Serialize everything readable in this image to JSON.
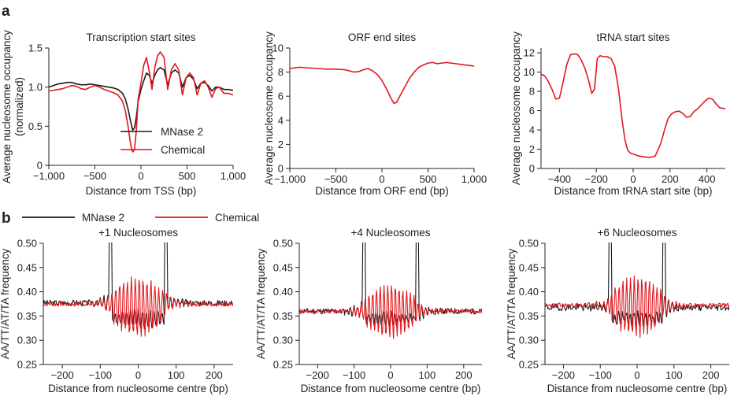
{
  "panel_labels": [
    "a",
    "b"
  ],
  "colors": {
    "black": "#1a1a1a",
    "red": "#e3171e"
  },
  "top_legend": {
    "entries": [
      "MNase 2",
      "Chemical"
    ]
  },
  "chart_data": [
    {
      "id": "tss",
      "type": "line",
      "title": "Transcription start sites",
      "xlabel": "Distance from TSS (bp)",
      "ylabel": [
        "Average nucleosome occupancy",
        "(normalized)"
      ],
      "xlim": [
        -1000,
        1000
      ],
      "ylim": [
        0,
        1.5
      ],
      "xticks": [
        -1000,
        -500,
        0,
        500,
        1000
      ],
      "xtick_labels": [
        "−1,000",
        "−500",
        "0",
        "500",
        "1,000"
      ],
      "yticks": [
        0,
        0.5,
        1.0,
        1.5
      ],
      "ytick_labels": [
        "0",
        "0.5",
        "1.0",
        "1.5"
      ],
      "legend": [
        "MNase 2",
        "Chemical"
      ],
      "series": [
        {
          "name": "MNase 2",
          "color": "#1a1a1a",
          "x": [
            -1000,
            -950,
            -900,
            -850,
            -800,
            -750,
            -700,
            -650,
            -600,
            -550,
            -500,
            -450,
            -400,
            -350,
            -300,
            -250,
            -200,
            -170,
            -140,
            -110,
            -90,
            -70,
            -50,
            -30,
            0,
            30,
            60,
            90,
            120,
            150,
            180,
            210,
            250,
            290,
            330,
            370,
            410,
            450,
            490,
            530,
            570,
            610,
            650,
            690,
            730,
            770,
            810,
            850,
            900,
            950,
            1000
          ],
          "y": [
            1.0,
            1.02,
            1.04,
            1.05,
            1.06,
            1.06,
            1.04,
            1.03,
            1.03,
            1.04,
            1.03,
            1.02,
            1.01,
            1.0,
            0.99,
            0.97,
            0.92,
            0.85,
            0.72,
            0.55,
            0.45,
            0.48,
            0.62,
            0.82,
            0.97,
            1.08,
            1.18,
            1.15,
            1.05,
            1.15,
            1.22,
            1.25,
            1.22,
            1.03,
            1.18,
            1.22,
            1.18,
            1.0,
            1.12,
            1.15,
            1.1,
            0.98,
            1.05,
            1.06,
            1.02,
            0.95,
            1.0,
            1.0,
            0.97,
            0.97,
            0.96
          ]
        },
        {
          "name": "Chemical",
          "color": "#e3171e",
          "x": [
            -1000,
            -950,
            -900,
            -850,
            -800,
            -750,
            -700,
            -650,
            -600,
            -550,
            -500,
            -450,
            -400,
            -350,
            -300,
            -250,
            -200,
            -170,
            -140,
            -110,
            -90,
            -70,
            -50,
            -30,
            0,
            30,
            60,
            90,
            120,
            150,
            180,
            210,
            250,
            290,
            330,
            370,
            410,
            450,
            490,
            530,
            570,
            610,
            650,
            690,
            730,
            770,
            810,
            850,
            900,
            950,
            1000
          ],
          "y": [
            0.95,
            0.96,
            0.97,
            0.98,
            1.0,
            1.02,
            1.01,
            0.98,
            0.97,
            1.0,
            1.02,
            1.0,
            0.97,
            0.95,
            0.93,
            0.9,
            0.82,
            0.7,
            0.5,
            0.25,
            0.17,
            0.2,
            0.45,
            0.85,
            1.05,
            1.28,
            1.38,
            1.2,
            0.97,
            1.25,
            1.4,
            1.45,
            1.38,
            0.97,
            1.22,
            1.3,
            1.22,
            0.9,
            1.12,
            1.18,
            1.12,
            0.9,
            1.05,
            1.08,
            1.0,
            0.87,
            0.98,
            1.0,
            0.92,
            0.92,
            0.9
          ]
        }
      ]
    },
    {
      "id": "orf",
      "type": "line",
      "title": "ORF end sites",
      "xlabel": "Distance from ORF end (bp)",
      "ylabel": [
        "Average nucleosome occupancy"
      ],
      "xlim": [
        -1000,
        1000
      ],
      "ylim": [
        0,
        10
      ],
      "xticks": [
        -1000,
        -500,
        0,
        500,
        1000
      ],
      "xtick_labels": [
        "−1,000",
        "−500",
        "0",
        "500",
        "1,000"
      ],
      "yticks": [
        0,
        2,
        4,
        6,
        8,
        10
      ],
      "ytick_labels": [
        "0",
        "2",
        "4",
        "6",
        "8",
        "10"
      ],
      "series": [
        {
          "name": "Chemical",
          "color": "#e3171e",
          "x": [
            -1000,
            -900,
            -800,
            -700,
            -600,
            -500,
            -400,
            -300,
            -250,
            -200,
            -150,
            -100,
            -50,
            0,
            50,
            100,
            130,
            160,
            200,
            250,
            300,
            350,
            400,
            450,
            500,
            550,
            600,
            700,
            800,
            900,
            1000
          ],
          "y": [
            8.3,
            8.4,
            8.35,
            8.3,
            8.25,
            8.25,
            8.2,
            8.0,
            8.05,
            8.2,
            8.3,
            8.1,
            7.8,
            7.3,
            6.6,
            5.8,
            5.4,
            5.5,
            6.1,
            6.8,
            7.5,
            8.0,
            8.4,
            8.6,
            8.75,
            8.8,
            8.7,
            8.8,
            8.7,
            8.6,
            8.5
          ]
        }
      ]
    },
    {
      "id": "trna",
      "type": "line",
      "title": "tRNA start sites",
      "xlabel": "Distance from tRNA start site (bp)",
      "ylabel": [
        "Average nucleosome occupancy"
      ],
      "xlim": [
        -500,
        500
      ],
      "ylim": [
        0,
        12.5
      ],
      "xticks": [
        -400,
        -200,
        0,
        200,
        400
      ],
      "xtick_labels": [
        "−400",
        "−200",
        "0",
        "200",
        "400"
      ],
      "yticks": [
        0,
        2,
        4,
        6,
        8,
        10,
        12
      ],
      "ytick_labels": [
        "0",
        "2",
        "4",
        "6",
        "8",
        "10",
        "12"
      ],
      "series": [
        {
          "name": "Chemical",
          "color": "#e3171e",
          "x": [
            -500,
            -480,
            -460,
            -440,
            -420,
            -400,
            -380,
            -360,
            -340,
            -320,
            -300,
            -280,
            -260,
            -240,
            -225,
            -210,
            -195,
            -180,
            -160,
            -140,
            -120,
            -100,
            -80,
            -60,
            -45,
            -30,
            -15,
            0,
            30,
            60,
            90,
            120,
            150,
            170,
            190,
            210,
            230,
            250,
            270,
            290,
            310,
            330,
            350,
            370,
            390,
            410,
            430,
            450,
            470,
            500
          ],
          "y": [
            9.8,
            9.6,
            9.0,
            8.2,
            7.2,
            7.3,
            9.0,
            10.8,
            11.8,
            11.9,
            11.8,
            11.2,
            10.3,
            9.0,
            7.8,
            8.2,
            11.4,
            11.7,
            11.6,
            11.6,
            11.4,
            10.6,
            8.3,
            5.0,
            3.0,
            1.9,
            1.6,
            1.5,
            1.3,
            1.2,
            1.15,
            1.3,
            2.6,
            4.0,
            5.2,
            5.7,
            5.9,
            5.95,
            5.7,
            5.3,
            5.4,
            5.9,
            6.2,
            6.6,
            7.0,
            7.3,
            7.2,
            6.7,
            6.3,
            6.2
          ]
        }
      ]
    },
    {
      "id": "nuc1",
      "type": "line",
      "title": "+1 Nucleosomes",
      "xlabel": "Distance from nucleosome centre (bp)",
      "ylabel": [
        "AA/TT/AT/TA frequency"
      ],
      "xlim": [
        -250,
        250
      ],
      "ylim": [
        0.25,
        0.5
      ],
      "xticks": [
        -200,
        -100,
        0,
        100,
        200
      ],
      "xtick_labels": [
        "−200",
        "−100",
        "0",
        "100",
        "200"
      ],
      "yticks": [
        0.25,
        0.3,
        0.35,
        0.4,
        0.45,
        0.5
      ],
      "ytick_labels": [
        "0.25",
        "0.30",
        "0.35",
        "0.40",
        "0.45",
        "0.50"
      ],
      "legend": [
        "MNase 2",
        "Chemical"
      ],
      "series": [
        {
          "name": "MNase 2",
          "color": "#1a1a1a",
          "gen": {
            "base": 0.377,
            "inner": 0.345,
            "innerAmp": 0.018,
            "period": 10.3,
            "spike": 0.52,
            "spikeAt": 73,
            "noise": 0.006,
            "seed": 3,
            "phase": 1.2
          },
          "x_range": [
            -250,
            250
          ],
          "step": 2
        },
        {
          "name": "Chemical",
          "color": "#e3171e",
          "gen": {
            "base": 0.375,
            "inner": 0.37,
            "innerAmp": 0.06,
            "period": 10.3,
            "spike": 0,
            "spikeAt": 73,
            "noise": 0.005,
            "seed": 7,
            "phase": 0
          },
          "x_range": [
            -250,
            250
          ],
          "step": 2
        }
      ]
    },
    {
      "id": "nuc4",
      "type": "line",
      "title": "+4 Nucleosomes",
      "xlabel": "Distance from nucleosome centre (bp)",
      "ylabel": [
        "AA/TT/AT/TA frequency"
      ],
      "xlim": [
        -250,
        250
      ],
      "ylim": [
        0.25,
        0.5
      ],
      "xticks": [
        -200,
        -100,
        0,
        100,
        200
      ],
      "xtick_labels": [
        "−200",
        "−100",
        "0",
        "100",
        "200"
      ],
      "yticks": [
        0.25,
        0.3,
        0.35,
        0.4,
        0.45,
        0.5
      ],
      "ytick_labels": [
        "0.25",
        "0.30",
        "0.35",
        "0.40",
        "0.45",
        "0.50"
      ],
      "series": [
        {
          "name": "MNase 2",
          "color": "#1a1a1a",
          "gen": {
            "base": 0.36,
            "inner": 0.345,
            "innerAmp": 0.012,
            "period": 10.3,
            "spike": 0.52,
            "spikeAt": 73,
            "noise": 0.006,
            "seed": 11,
            "phase": 0.9
          },
          "x_range": [
            -250,
            250
          ],
          "step": 2
        },
        {
          "name": "Chemical",
          "color": "#e3171e",
          "gen": {
            "base": 0.36,
            "inner": 0.36,
            "innerAmp": 0.055,
            "period": 10.3,
            "spike": 0,
            "spikeAt": 73,
            "noise": 0.004,
            "seed": 13,
            "phase": 0
          },
          "x_range": [
            -250,
            250
          ],
          "step": 2
        }
      ]
    },
    {
      "id": "nuc6",
      "type": "line",
      "title": "+6 Nucleosomes",
      "xlabel": "Distance from nucleosome centre (bp)",
      "ylabel": [
        "AA/TT/AT/TA frequency"
      ],
      "xlim": [
        -250,
        250
      ],
      "ylim": [
        0.25,
        0.5
      ],
      "xticks": [
        -200,
        -100,
        0,
        100,
        200
      ],
      "xtick_labels": [
        "−200",
        "−100",
        "0",
        "100",
        "200"
      ],
      "yticks": [
        0.25,
        0.3,
        0.35,
        0.4,
        0.45,
        0.5
      ],
      "ytick_labels": [
        "0.25",
        "0.30",
        "0.35",
        "0.40",
        "0.45",
        "0.50"
      ],
      "series": [
        {
          "name": "MNase 2",
          "color": "#1a1a1a",
          "gen": {
            "base": 0.368,
            "inner": 0.345,
            "innerAmp": 0.012,
            "period": 10.3,
            "spike": 0.52,
            "spikeAt": 73,
            "noise": 0.007,
            "seed": 19,
            "phase": 0.7
          },
          "x_range": [
            -250,
            250
          ],
          "step": 2
        },
        {
          "name": "Chemical",
          "color": "#e3171e",
          "gen": {
            "base": 0.372,
            "inner": 0.37,
            "innerAmp": 0.062,
            "period": 10.3,
            "spike": 0,
            "spikeAt": 73,
            "noise": 0.005,
            "seed": 23,
            "phase": 0
          },
          "x_range": [
            -250,
            250
          ],
          "step": 2
        }
      ]
    }
  ]
}
